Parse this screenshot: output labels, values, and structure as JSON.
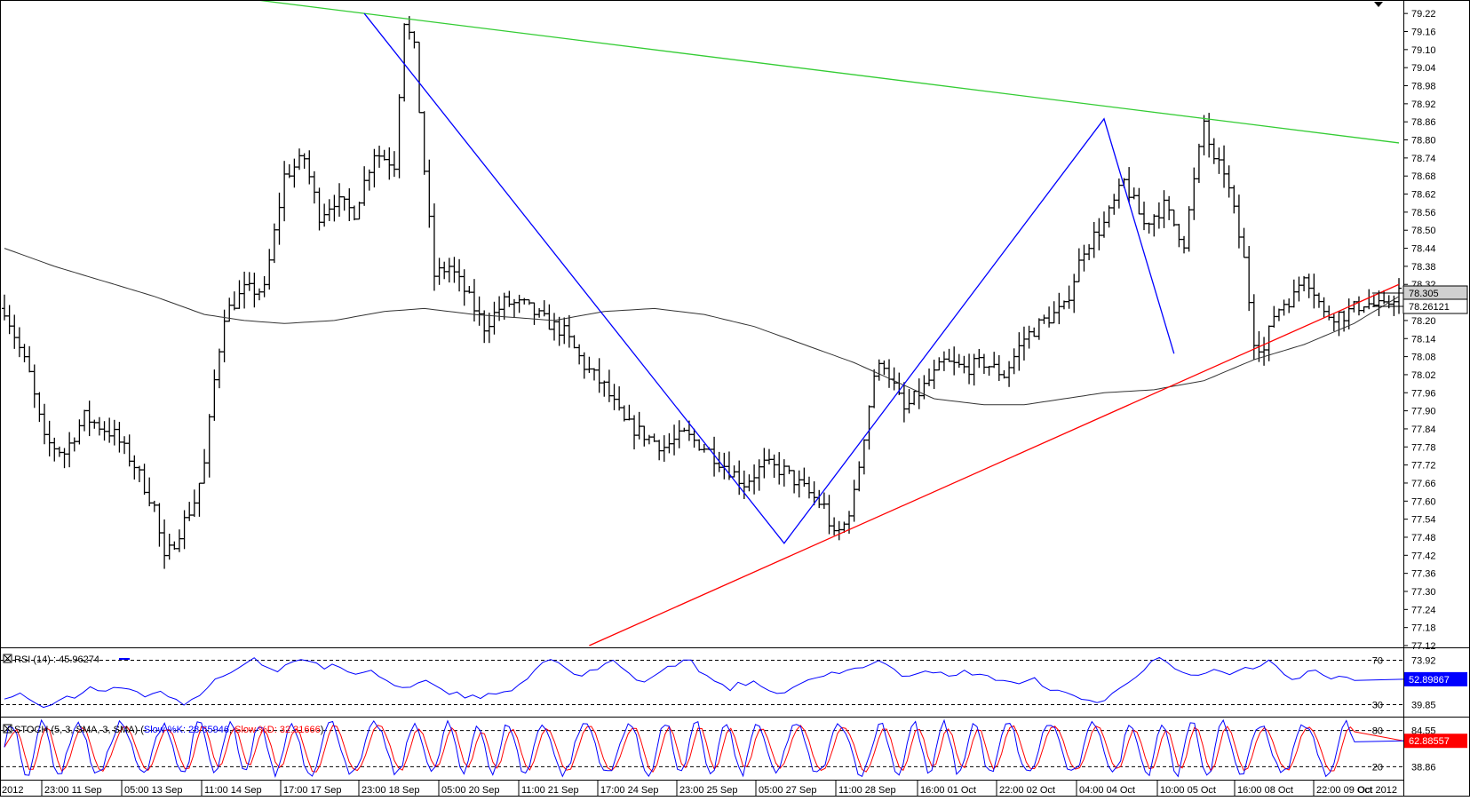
{
  "colors": {
    "background": "#ffffff",
    "frame": "#000000",
    "price_bars": "#000000",
    "moving_average": "#333333",
    "resistance_line": "#33cc33",
    "support_line": "#ff0000",
    "swing_lines": "#0000ff",
    "rsi_line": "#0000ff",
    "stoch_k": "#0000ff",
    "stoch_d": "#ff0000",
    "rsi_badge": "#0000ff",
    "stoch_badge": "#ff0000",
    "price_badge": "#c0c0c0"
  },
  "chart_data": [
    {
      "type": "ohlc",
      "panel": "price",
      "y_axis": {
        "ticks": [
          "79.22",
          "79.16",
          "79.10",
          "79.04",
          "78.98",
          "78.92",
          "78.86",
          "78.80",
          "78.74",
          "78.68",
          "78.62",
          "78.56",
          "78.50",
          "78.44",
          "78.38",
          "78.32",
          "78.20",
          "78.14",
          "78.08",
          "78.02",
          "77.96",
          "77.90",
          "77.84",
          "77.78",
          "77.72",
          "77.66",
          "77.60",
          "77.54",
          "77.48",
          "77.42",
          "77.36",
          "77.30",
          "77.24",
          "77.18",
          "77.12"
        ],
        "ylim": [
          77.12,
          79.25
        ]
      },
      "x_axis": {
        "ticks": [
          "2012",
          "23:00 11 Sep",
          "05:00 13 Sep",
          "11:00 14 Sep",
          "17:00 17 Sep",
          "23:00 18 Sep",
          "05:00 20 Sep",
          "11:00 21 Sep",
          "17:00 24 Sep",
          "23:00 25 Sep",
          "05:00 27 Sep",
          "11:00 28 Sep",
          "16:00 01 Oct",
          "22:00 02 Oct",
          "04:00 04 Oct",
          "10:00 05 Oct",
          "16:00 08 Oct",
          "22:00 09 Oct",
          "Oct 2012"
        ]
      },
      "price_anchors": [
        [
          0,
          78.24
        ],
        [
          5,
          78.02
        ],
        [
          8,
          77.8
        ],
        [
          12,
          77.76
        ],
        [
          16,
          77.88
        ],
        [
          22,
          77.82
        ],
        [
          26,
          77.72
        ],
        [
          30,
          77.58
        ],
        [
          32,
          77.4
        ],
        [
          35,
          77.5
        ],
        [
          38,
          77.6
        ],
        [
          40,
          77.72
        ],
        [
          42,
          78.0
        ],
        [
          44,
          78.22
        ],
        [
          48,
          78.3
        ],
        [
          52,
          78.3
        ],
        [
          56,
          78.68
        ],
        [
          60,
          78.74
        ],
        [
          63,
          78.55
        ],
        [
          66,
          78.6
        ],
        [
          70,
          78.56
        ],
        [
          74,
          78.76
        ],
        [
          78,
          78.72
        ],
        [
          80,
          79.2
        ],
        [
          82,
          79.1
        ],
        [
          84,
          78.7
        ],
        [
          86,
          78.35
        ],
        [
          89,
          78.38
        ],
        [
          92,
          78.3
        ],
        [
          96,
          78.18
        ],
        [
          100,
          78.26
        ],
        [
          104,
          78.25
        ],
        [
          108,
          78.2
        ],
        [
          112,
          78.16
        ],
        [
          116,
          78.05
        ],
        [
          120,
          77.98
        ],
        [
          124,
          77.86
        ],
        [
          128,
          77.82
        ],
        [
          132,
          77.78
        ],
        [
          136,
          77.82
        ],
        [
          140,
          77.78
        ],
        [
          144,
          77.72
        ],
        [
          148,
          77.66
        ],
        [
          152,
          77.72
        ],
        [
          156,
          77.7
        ],
        [
          160,
          77.64
        ],
        [
          164,
          77.58
        ],
        [
          166,
          77.48
        ],
        [
          168,
          77.52
        ],
        [
          170,
          77.62
        ],
        [
          172,
          77.82
        ],
        [
          174,
          78.02
        ],
        [
          176,
          78.06
        ],
        [
          178,
          77.98
        ],
        [
          180,
          77.9
        ],
        [
          184,
          77.98
        ],
        [
          188,
          78.06
        ],
        [
          192,
          78.04
        ],
        [
          196,
          78.06
        ],
        [
          200,
          78.02
        ],
        [
          204,
          78.14
        ],
        [
          208,
          78.2
        ],
        [
          212,
          78.24
        ],
        [
          216,
          78.44
        ],
        [
          220,
          78.52
        ],
        [
          224,
          78.66
        ],
        [
          228,
          78.52
        ],
        [
          232,
          78.58
        ],
        [
          236,
          78.46
        ],
        [
          240,
          78.86
        ],
        [
          242,
          78.72
        ],
        [
          244,
          78.7
        ],
        [
          246,
          78.56
        ],
        [
          248,
          78.4
        ],
        [
          250,
          78.14
        ],
        [
          252,
          78.1
        ],
        [
          254,
          78.22
        ],
        [
          256,
          78.26
        ],
        [
          258,
          78.28
        ],
        [
          260,
          78.36
        ],
        [
          262,
          78.3
        ],
        [
          264,
          78.22
        ],
        [
          268,
          78.22
        ],
        [
          272,
          78.26
        ],
        [
          276,
          78.24
        ],
        [
          279,
          78.3
        ]
      ],
      "moving_average": {
        "name": "",
        "anchors": [
          [
            0,
            78.44
          ],
          [
            10,
            78.38
          ],
          [
            20,
            78.33
          ],
          [
            30,
            78.28
          ],
          [
            40,
            78.22
          ],
          [
            48,
            78.2
          ],
          [
            56,
            78.19
          ],
          [
            66,
            78.2
          ],
          [
            76,
            78.23
          ],
          [
            84,
            78.24
          ],
          [
            94,
            78.22
          ],
          [
            110,
            78.2
          ],
          [
            120,
            78.23
          ],
          [
            130,
            78.24
          ],
          [
            140,
            78.22
          ],
          [
            150,
            78.18
          ],
          [
            160,
            78.12
          ],
          [
            170,
            78.06
          ],
          [
            178,
            78.0
          ],
          [
            186,
            77.94
          ],
          [
            196,
            77.92
          ],
          [
            204,
            77.92
          ],
          [
            212,
            77.94
          ],
          [
            220,
            77.96
          ],
          [
            230,
            77.97
          ],
          [
            240,
            78.0
          ],
          [
            250,
            78.07
          ],
          [
            260,
            78.12
          ],
          [
            270,
            78.19
          ],
          [
            279,
            78.28
          ]
        ]
      },
      "trendlines": [
        {
          "name": "resistance",
          "from": [
            48,
            79.27
          ],
          "to": [
            279,
            78.79
          ]
        },
        {
          "name": "support",
          "from": [
            117,
            77.12
          ],
          "to": [
            279,
            78.32
          ]
        }
      ],
      "swing_lines": [
        [
          72,
          79.22
        ],
        [
          156,
          77.46
        ],
        [
          220,
          78.87
        ],
        [
          234,
          78.09
        ]
      ],
      "price_labels": [
        "78.305",
        "78.26121"
      ]
    },
    {
      "type": "line",
      "panel": "rsi",
      "legend": "RSI (14)",
      "legend_value": "45.96274",
      "levels": [
        70,
        30
      ],
      "y_axis_labels": [
        "73.92",
        "39.85"
      ],
      "current_value": "52.89867",
      "ylim": [
        20,
        80
      ],
      "values": [
        34,
        37,
        42,
        36,
        30,
        27,
        29,
        33,
        38,
        35,
        41,
        46,
        44,
        42,
        47,
        45,
        44,
        42,
        38,
        40,
        43,
        37,
        36,
        31,
        34,
        38,
        44,
        52,
        55,
        58,
        62,
        68,
        71,
        66,
        63,
        61,
        67,
        70,
        72,
        69,
        67,
        63,
        68,
        65,
        59,
        56,
        58,
        60,
        54,
        51,
        47,
        45,
        47,
        50,
        52,
        48,
        44,
        39,
        41,
        36,
        38,
        36,
        39,
        41,
        43,
        42,
        47,
        54,
        63,
        69,
        72,
        68,
        62,
        57,
        56,
        60,
        63,
        66,
        69,
        64,
        59,
        53,
        50,
        56,
        60,
        64,
        66,
        70,
        69,
        61,
        55,
        52,
        48,
        44,
        49,
        47,
        52,
        46,
        43,
        40,
        41,
        44,
        48,
        51,
        53,
        57,
        60,
        58,
        61,
        64,
        63,
        67,
        70,
        66,
        61,
        56,
        57,
        59,
        61,
        60,
        58,
        55,
        56,
        60,
        58,
        57,
        55,
        53,
        52,
        51,
        48,
        51,
        53,
        48,
        44,
        42,
        40,
        38,
        36,
        34,
        32,
        33,
        40,
        46,
        51,
        56,
        61,
        68,
        72,
        67,
        61,
        58,
        56,
        57,
        58,
        61,
        59,
        57,
        60,
        63,
        62,
        66,
        69,
        64,
        58,
        53,
        55,
        59,
        62,
        57,
        52,
        55,
        54,
        53
      ]
    },
    {
      "type": "line",
      "panel": "stochastic",
      "legend": "STOCH (5, 3, SMA, 3, SMA)",
      "series": [
        {
          "name": "Slow %K",
          "value": "28.65946"
        },
        {
          "name": "Slow %D",
          "value": "32.31666"
        }
      ],
      "levels": [
        80,
        20
      ],
      "y_axis_labels": [
        "84.55",
        "38.86"
      ],
      "current_value": "62.88557",
      "ylim": [
        0,
        100
      ]
    }
  ]
}
